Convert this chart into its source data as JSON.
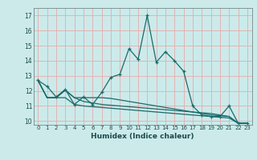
{
  "xlabel": "Humidex (Indice chaleur)",
  "bg_color": "#cceaea",
  "grid_color": "#e8aaaa",
  "line_color": "#1a6b6b",
  "xlim": [
    -0.5,
    23.5
  ],
  "ylim": [
    9.75,
    17.5
  ],
  "yticks": [
    10,
    11,
    12,
    13,
    14,
    15,
    16,
    17
  ],
  "xticks": [
    0,
    1,
    2,
    3,
    4,
    5,
    6,
    7,
    8,
    9,
    10,
    11,
    12,
    13,
    14,
    15,
    16,
    17,
    18,
    19,
    20,
    21,
    22,
    23
  ],
  "line1_x": [
    0,
    1,
    2,
    3,
    4,
    5,
    6,
    7,
    8,
    9,
    10,
    11,
    12,
    13,
    14,
    15,
    16,
    17,
    18,
    19,
    20,
    21,
    22,
    23
  ],
  "line1_y": [
    12.7,
    12.3,
    11.6,
    12.1,
    11.1,
    11.6,
    11.1,
    11.9,
    12.9,
    13.1,
    14.8,
    14.1,
    17.0,
    13.9,
    14.6,
    14.0,
    13.3,
    11.0,
    10.4,
    10.3,
    10.3,
    11.0,
    9.85,
    9.85
  ],
  "line2_x": [
    0,
    1,
    2,
    3,
    4,
    5,
    6,
    7,
    8,
    9,
    10,
    11,
    12,
    13,
    14,
    15,
    16,
    17,
    18,
    19,
    20,
    21,
    22,
    23
  ],
  "line2_y": [
    12.7,
    11.55,
    11.55,
    12.05,
    11.55,
    11.55,
    11.55,
    11.55,
    11.5,
    11.4,
    11.3,
    11.2,
    11.1,
    11.0,
    10.9,
    10.8,
    10.7,
    10.6,
    10.5,
    10.4,
    10.35,
    10.3,
    9.85,
    9.85
  ],
  "line3_x": [
    0,
    1,
    2,
    3,
    4,
    5,
    6,
    7,
    8,
    9,
    10,
    11,
    12,
    13,
    14,
    15,
    16,
    17,
    18,
    19,
    20,
    21,
    22,
    23
  ],
  "line3_y": [
    12.7,
    11.55,
    11.55,
    12.05,
    11.55,
    11.3,
    11.2,
    11.1,
    11.05,
    11.0,
    10.95,
    10.9,
    10.85,
    10.8,
    10.75,
    10.7,
    10.65,
    10.6,
    10.55,
    10.5,
    10.4,
    10.3,
    9.85,
    9.85
  ],
  "line4_x": [
    0,
    1,
    2,
    3,
    4,
    5,
    6,
    7,
    8,
    9,
    10,
    11,
    12,
    13,
    14,
    15,
    16,
    17,
    18,
    19,
    20,
    21,
    22,
    23
  ],
  "line4_y": [
    12.7,
    11.55,
    11.55,
    11.55,
    11.1,
    11.0,
    10.95,
    10.9,
    10.85,
    10.8,
    10.75,
    10.7,
    10.65,
    10.6,
    10.55,
    10.5,
    10.45,
    10.4,
    10.35,
    10.3,
    10.25,
    10.2,
    9.85,
    9.85
  ]
}
